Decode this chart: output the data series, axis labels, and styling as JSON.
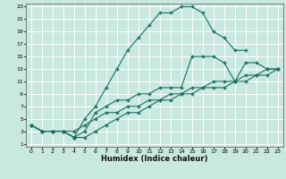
{
  "xlabel": "Humidex (Indice chaleur)",
  "bg_color": "#c8e8e0",
  "grid_color": "#ffffff",
  "line_color": "#1a7060",
  "xlim": [
    -0.5,
    23.5
  ],
  "ylim": [
    0.5,
    23.5
  ],
  "xticks": [
    0,
    1,
    2,
    3,
    4,
    5,
    6,
    7,
    8,
    9,
    10,
    11,
    12,
    13,
    14,
    15,
    16,
    17,
    18,
    19,
    20,
    21,
    22,
    23
  ],
  "yticks": [
    1,
    3,
    5,
    7,
    9,
    11,
    13,
    15,
    17,
    19,
    21,
    23
  ],
  "line1_x": [
    0,
    1,
    2,
    3,
    4,
    5,
    6,
    7,
    8,
    9,
    10,
    11,
    12,
    13,
    14,
    15,
    16,
    17,
    18,
    19,
    20
  ],
  "line1_y": [
    4,
    3,
    3,
    3,
    2,
    5,
    7,
    10,
    13,
    16,
    18,
    20,
    22,
    22,
    23,
    23,
    22,
    19,
    18,
    16,
    16
  ],
  "line2_x": [
    0,
    1,
    2,
    3,
    4,
    5,
    6,
    7,
    8,
    9,
    10,
    11,
    12,
    13,
    14,
    15,
    16,
    17,
    18,
    19,
    20,
    21,
    22,
    23
  ],
  "line2_y": [
    4,
    3,
    3,
    3,
    2,
    2,
    3,
    4,
    5,
    6,
    6,
    7,
    8,
    8,
    9,
    9,
    10,
    10,
    10,
    11,
    11,
    12,
    12,
    13
  ],
  "line3_x": [
    0,
    1,
    2,
    3,
    4,
    5,
    6,
    7,
    8,
    9,
    10,
    11,
    12,
    13,
    14,
    15,
    16,
    17,
    18,
    19,
    20,
    21,
    22,
    23
  ],
  "line3_y": [
    4,
    3,
    3,
    3,
    3,
    4,
    5,
    6,
    6,
    7,
    7,
    8,
    8,
    9,
    9,
    10,
    10,
    11,
    11,
    11,
    12,
    12,
    13,
    13
  ],
  "line4_x": [
    0,
    1,
    2,
    3,
    4,
    5,
    6,
    7,
    8,
    9,
    10,
    11,
    12,
    13,
    14,
    15,
    16,
    17,
    18,
    19,
    20,
    21,
    22,
    23
  ],
  "line4_y": [
    4,
    3,
    3,
    3,
    2,
    3,
    6,
    7,
    8,
    8,
    9,
    9,
    10,
    10,
    10,
    15,
    15,
    15,
    14,
    11,
    14,
    14,
    13,
    13
  ]
}
